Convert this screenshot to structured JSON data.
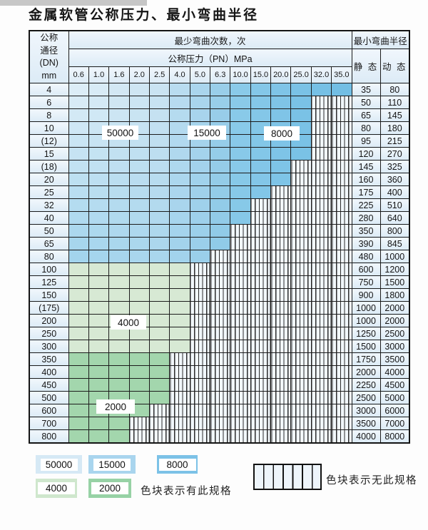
{
  "title": "金属软管公称压力、最小弯曲半径",
  "table": {
    "corner": {
      "line1": "公称",
      "line2": "通径",
      "line3": "(DN)",
      "line4": "mm"
    },
    "bend_cycles_header": "最少弯曲次数，次",
    "pressure_header": "公称压力（PN）MPa",
    "radius_header": "最小弯曲半径",
    "static_header": "静 态",
    "dynamic_header": "动 态",
    "pressure_columns": [
      "0.6",
      "1.0",
      "1.6",
      "2.0",
      "2.5",
      "4.0",
      "5.0",
      "6.3",
      "10.0",
      "15.0",
      "20.0",
      "25.0",
      "32.0",
      "35.0"
    ],
    "rows": [
      {
        "dn": "4",
        "colored": 14,
        "static": "35",
        "dynamic": "80"
      },
      {
        "dn": "6",
        "colored": 12,
        "static": "50",
        "dynamic": "110"
      },
      {
        "dn": "8",
        "colored": 12,
        "static": "65",
        "dynamic": "145"
      },
      {
        "dn": "10",
        "colored": 12,
        "static": "80",
        "dynamic": "180"
      },
      {
        "dn": "(12)",
        "colored": 12,
        "static": "95",
        "dynamic": "215"
      },
      {
        "dn": "15",
        "colored": 12,
        "static": "120",
        "dynamic": "270"
      },
      {
        "dn": "(18)",
        "colored": 11,
        "static": "145",
        "dynamic": "325"
      },
      {
        "dn": "20",
        "colored": 11,
        "static": "160",
        "dynamic": "360"
      },
      {
        "dn": "25",
        "colored": 10,
        "static": "175",
        "dynamic": "400"
      },
      {
        "dn": "32",
        "colored": 9,
        "static": "225",
        "dynamic": "510"
      },
      {
        "dn": "40",
        "colored": 9,
        "static": "280",
        "dynamic": "640"
      },
      {
        "dn": "50",
        "colored": 8,
        "static": "350",
        "dynamic": "800"
      },
      {
        "dn": "65",
        "colored": 8,
        "static": "390",
        "dynamic": "845"
      },
      {
        "dn": "80",
        "colored": 7,
        "static": "480",
        "dynamic": "1000"
      },
      {
        "dn": "100",
        "colored": 6,
        "static": "600",
        "dynamic": "1200"
      },
      {
        "dn": "125",
        "colored": 6,
        "static": "750",
        "dynamic": "1500"
      },
      {
        "dn": "150",
        "colored": 6,
        "static": "900",
        "dynamic": "1800"
      },
      {
        "dn": "(175)",
        "colored": 6,
        "static": "1000",
        "dynamic": "2000"
      },
      {
        "dn": "200",
        "colored": 6,
        "static": "1000",
        "dynamic": "2000"
      },
      {
        "dn": "250",
        "colored": 6,
        "static": "1250",
        "dynamic": "2500"
      },
      {
        "dn": "300",
        "colored": 6,
        "static": "1500",
        "dynamic": "3000"
      },
      {
        "dn": "350",
        "colored": 5,
        "static": "1750",
        "dynamic": "3500"
      },
      {
        "dn": "400",
        "colored": 5,
        "static": "2000",
        "dynamic": "4000"
      },
      {
        "dn": "450",
        "colored": 5,
        "static": "2250",
        "dynamic": "4500"
      },
      {
        "dn": "500",
        "colored": 5,
        "static": "2500",
        "dynamic": "5000"
      },
      {
        "dn": "600",
        "colored": 4,
        "static": "3000",
        "dynamic": "6000"
      },
      {
        "dn": "700",
        "colored": 3,
        "static": "3500",
        "dynamic": "7000"
      },
      {
        "dn": "800",
        "colored": 3,
        "static": "4000",
        "dynamic": "8000"
      }
    ]
  },
  "zones": {
    "blue": [
      {
        "value": "50000",
        "pressure_range": "0.6–2.5"
      },
      {
        "value": "15000",
        "pressure_range": "4.0–6.3"
      },
      {
        "value": "8000",
        "pressure_range": "10.0–35.0"
      }
    ],
    "green": [
      {
        "value": "4000",
        "dn_range": "100–300"
      },
      {
        "value": "2000",
        "dn_range": "350–800"
      }
    ]
  },
  "legend": {
    "items": [
      {
        "value": "50000",
        "color": "#d6e9f5"
      },
      {
        "value": "15000",
        "color": "#a9d5ee"
      },
      {
        "value": "8000",
        "color": "#7cc2e7"
      },
      {
        "value": "4000",
        "color": "#cfe7cd"
      },
      {
        "value": "2000",
        "color": "#97d2a5"
      }
    ],
    "has_spec_text": "色块表示有此规格",
    "no_spec_text": "色块表示无此规格"
  },
  "colors": {
    "green_light_cell": "#d7e9d4",
    "green_dark_cell": "#a3d6ad",
    "blue_dark_anchor": "#74c0e4",
    "hatch_bg": "#f2f8fc",
    "grid": "#1c1c1c"
  }
}
